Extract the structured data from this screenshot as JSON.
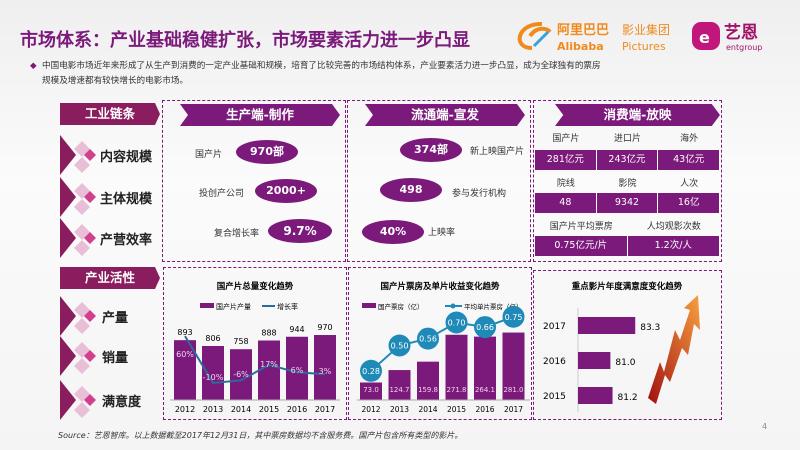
{
  "title": "市场体系：产业基础稳健扩张，市场要素活力进一步凸显",
  "intro": "中国电影市场近年来形成了从生产到消费的一定产业基础和规模，培育了比较完善的市场结构体系，产业要素活力进一步凸显，成为全球独有的票房规模及增速都有较快增长的电影市场。",
  "logos": {
    "alibaba_cn": "阿里巴巴",
    "alibaba_en": "Alibaba",
    "pictures_cn": "影业集团",
    "pictures_en": "Pictures",
    "entgroup_cn": "艺恩",
    "entgroup_en": "entgroup"
  },
  "industry_chain": {
    "header": "工业链条",
    "rows": [
      "内容规模",
      "主体规模",
      "产营效率"
    ]
  },
  "production": {
    "header": "生产端-制作",
    "items": [
      {
        "label": "国产片",
        "value": "970部"
      },
      {
        "label": "投创产公司",
        "value": "2000+"
      },
      {
        "label": "复合增长率",
        "value": "9.7%"
      }
    ]
  },
  "distribution": {
    "header": "流通端-宣发",
    "items": [
      {
        "label": "新上映国产片",
        "value": "374部"
      },
      {
        "label": "参与发行机构",
        "value": "498"
      },
      {
        "label": "上映率",
        "value": "40%"
      }
    ]
  },
  "consumption": {
    "header": "消费端-放映",
    "row1_heads": [
      "国产片",
      "进口片",
      "海外"
    ],
    "row1_vals": [
      "281亿元",
      "243亿元",
      "43亿元"
    ],
    "row2_heads": [
      "院线",
      "影院",
      "人次"
    ],
    "row2_vals": [
      "48",
      "9342",
      "16亿"
    ],
    "row3_heads": [
      "国产片平均票房",
      "人均观影次数"
    ],
    "row3_vals": [
      "0.75亿元/片",
      "1.2次/人"
    ]
  },
  "industry_vitality": {
    "header": "产业活性",
    "rows": [
      "产量",
      "销量",
      "满意度"
    ]
  },
  "colors": {
    "purple": "#7b1a7b",
    "magenta": "#8a1d5e",
    "line": "#2d6a9a",
    "dot": "#1f8ab8"
  },
  "chart_data": [
    {
      "type": "bar",
      "title": "国产片总量变化趋势",
      "categories": [
        "2012",
        "2013",
        "2014",
        "2015",
        "2016",
        "2017"
      ],
      "series": [
        {
          "name": "国产片产量",
          "values": [
            893,
            806,
            758,
            888,
            944,
            970
          ]
        },
        {
          "name": "增长率",
          "type": "line",
          "values": [
            60,
            -10,
            -6,
            17,
            6,
            3
          ],
          "labels": [
            "60%",
            "-10%",
            "-6%",
            "17%",
            "6%",
            "3%"
          ]
        }
      ]
    },
    {
      "type": "bar",
      "title": "国产片票房及单片收益变化趋势",
      "categories": [
        "2012",
        "2013",
        "2014",
        "2015",
        "2016",
        "2017"
      ],
      "series": [
        {
          "name": "国产票房（亿）",
          "values": [
            73.0,
            124.7,
            159.8,
            271.8,
            264.1,
            281.0
          ]
        },
        {
          "name": "平均单片票房（亿）",
          "type": "line",
          "values": [
            0.28,
            0.5,
            0.56,
            0.7,
            0.66,
            0.75
          ]
        }
      ]
    },
    {
      "type": "bar",
      "orientation": "horizontal",
      "title": "重点影片年度满意度变化趋势",
      "categories": [
        "2017",
        "2016",
        "2015"
      ],
      "values": [
        83.3,
        81.0,
        81.2
      ]
    }
  ],
  "source": "Source：艺恩智库。以上数据截至2017年12月31日，其中票房数据均不含服务费。国产片包含所有类型的影片。",
  "page_number": "4"
}
